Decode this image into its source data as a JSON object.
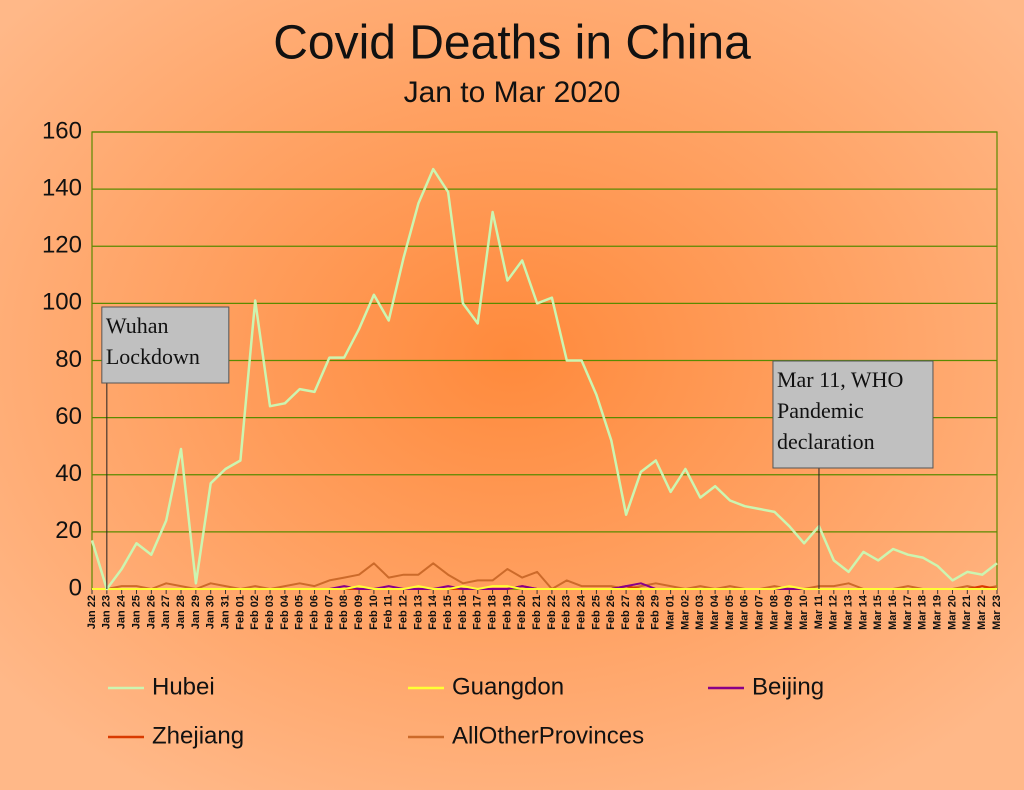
{
  "chart_data": {
    "type": "line",
    "title": "Covid Deaths in China",
    "subtitle": "Jan to Mar 2020",
    "categories": [
      "Jan 22",
      "Jan 23",
      "Jan 24",
      "Jan 25",
      "Jan 26",
      "Jan 27",
      "Jan 28",
      "Jan 29",
      "Jan 30",
      "Jan 31",
      "Feb 01",
      "Feb 02",
      "Feb 03",
      "Feb 04",
      "Feb 05",
      "Feb 06",
      "Feb 07",
      "Feb 08",
      "Feb 09",
      "Feb 10",
      "Feb 11",
      "Feb 12",
      "Feb 13",
      "Feb 14",
      "Feb 15",
      "Feb 16",
      "Feb 17",
      "Feb 18",
      "Feb 19",
      "Feb 20",
      "Feb 21",
      "Feb 22",
      "Feb 23",
      "Feb 24",
      "Feb 25",
      "Feb 26",
      "Feb 27",
      "Feb 28",
      "Feb 29",
      "Mar 01",
      "Mar 02",
      "Mar 03",
      "Mar 04",
      "Mar 05",
      "Mar 06",
      "Mar 07",
      "Mar 08",
      "Mar 09",
      "Mar 10",
      "Mar 11",
      "Mar 12",
      "Mar 13",
      "Mar 14",
      "Mar 15",
      "Mar 16",
      "Mar 17",
      "Mar 18",
      "Mar 19",
      "Mar 20",
      "Mar 21",
      "Mar 22",
      "Mar 23"
    ],
    "series": [
      {
        "name": "Hubei",
        "color": "#ccf5b0",
        "values": [
          17,
          0,
          7,
          16,
          12,
          24,
          49,
          2,
          37,
          42,
          45,
          101,
          64,
          65,
          70,
          69,
          81,
          81,
          91,
          103,
          94,
          116,
          135,
          147,
          139,
          100,
          93,
          132,
          108,
          115,
          100,
          102,
          80,
          80,
          68,
          52,
          26,
          41,
          45,
          34,
          42,
          32,
          36,
          31,
          29,
          28,
          27,
          22,
          16,
          22,
          10,
          6,
          13,
          10,
          14,
          12,
          11,
          8,
          3,
          6,
          5,
          9
        ]
      },
      {
        "name": "Guangdon",
        "color": "#ffff33",
        "values": [
          0,
          0,
          0,
          0,
          0,
          0,
          0,
          0,
          0,
          0,
          0,
          0,
          0,
          0,
          0,
          0,
          0,
          0,
          1,
          0,
          0,
          0,
          1,
          0,
          0,
          1,
          0,
          1,
          1,
          0,
          0,
          0,
          0,
          0,
          0,
          0,
          0,
          0,
          0,
          0,
          0,
          0,
          0,
          0,
          0,
          0,
          0,
          1,
          0,
          0,
          0,
          0,
          0,
          0,
          0,
          0,
          0,
          0,
          0,
          0,
          0,
          0
        ]
      },
      {
        "name": "Beijing",
        "color": "#880088",
        "values": [
          0,
          0,
          0,
          0,
          0,
          0,
          0,
          0,
          0,
          0,
          0,
          0,
          0,
          0,
          0,
          0,
          0,
          1,
          0,
          0,
          1,
          0,
          0,
          0,
          1,
          0,
          0,
          0,
          0,
          1,
          0,
          0,
          0,
          0,
          0,
          0,
          1,
          2,
          0,
          0,
          0,
          0,
          0,
          0,
          0,
          0,
          0,
          0,
          0,
          0,
          0,
          0,
          0,
          0,
          0,
          0,
          0,
          0,
          0,
          0,
          0,
          0
        ]
      },
      {
        "name": "Zhejiang",
        "color": "#d93a00",
        "values": [
          0,
          0,
          0,
          0,
          0,
          0,
          0,
          0,
          0,
          0,
          0,
          0,
          0,
          0,
          0,
          0,
          0,
          0,
          0,
          0,
          0,
          0,
          0,
          0,
          0,
          0,
          0,
          0,
          0,
          1,
          0,
          0,
          0,
          0,
          0,
          0,
          1,
          0,
          0,
          0,
          0,
          0,
          0,
          0,
          0,
          0,
          0,
          0,
          0,
          0,
          0,
          0,
          0,
          0,
          0,
          0,
          0,
          0,
          0,
          0,
          1,
          0
        ]
      },
      {
        "name": "AllOtherProvinces",
        "color": "#cc6a2a",
        "values": [
          0,
          0,
          1,
          1,
          0,
          2,
          1,
          0,
          2,
          1,
          0,
          1,
          0,
          1,
          2,
          1,
          3,
          4,
          5,
          9,
          4,
          5,
          5,
          9,
          5,
          2,
          3,
          3,
          7,
          4,
          6,
          0,
          3,
          1,
          1,
          1,
          0,
          1,
          2,
          1,
          0,
          1,
          0,
          1,
          0,
          0,
          1,
          0,
          0,
          1,
          1,
          2,
          0,
          0,
          0,
          1,
          0,
          0,
          0,
          1,
          0,
          1
        ]
      }
    ],
    "ylim": [
      0,
      160
    ],
    "yticks": [
      0,
      20,
      40,
      60,
      80,
      100,
      120,
      140,
      160
    ],
    "grid": true,
    "annotations": [
      {
        "x": "Jan 23",
        "lines": [
          "Wuhan",
          "Lockdown"
        ]
      },
      {
        "x": "Mar 11",
        "lines": [
          "Mar 11, WHO",
          "Pandemic",
          "declaration"
        ]
      }
    ]
  }
}
